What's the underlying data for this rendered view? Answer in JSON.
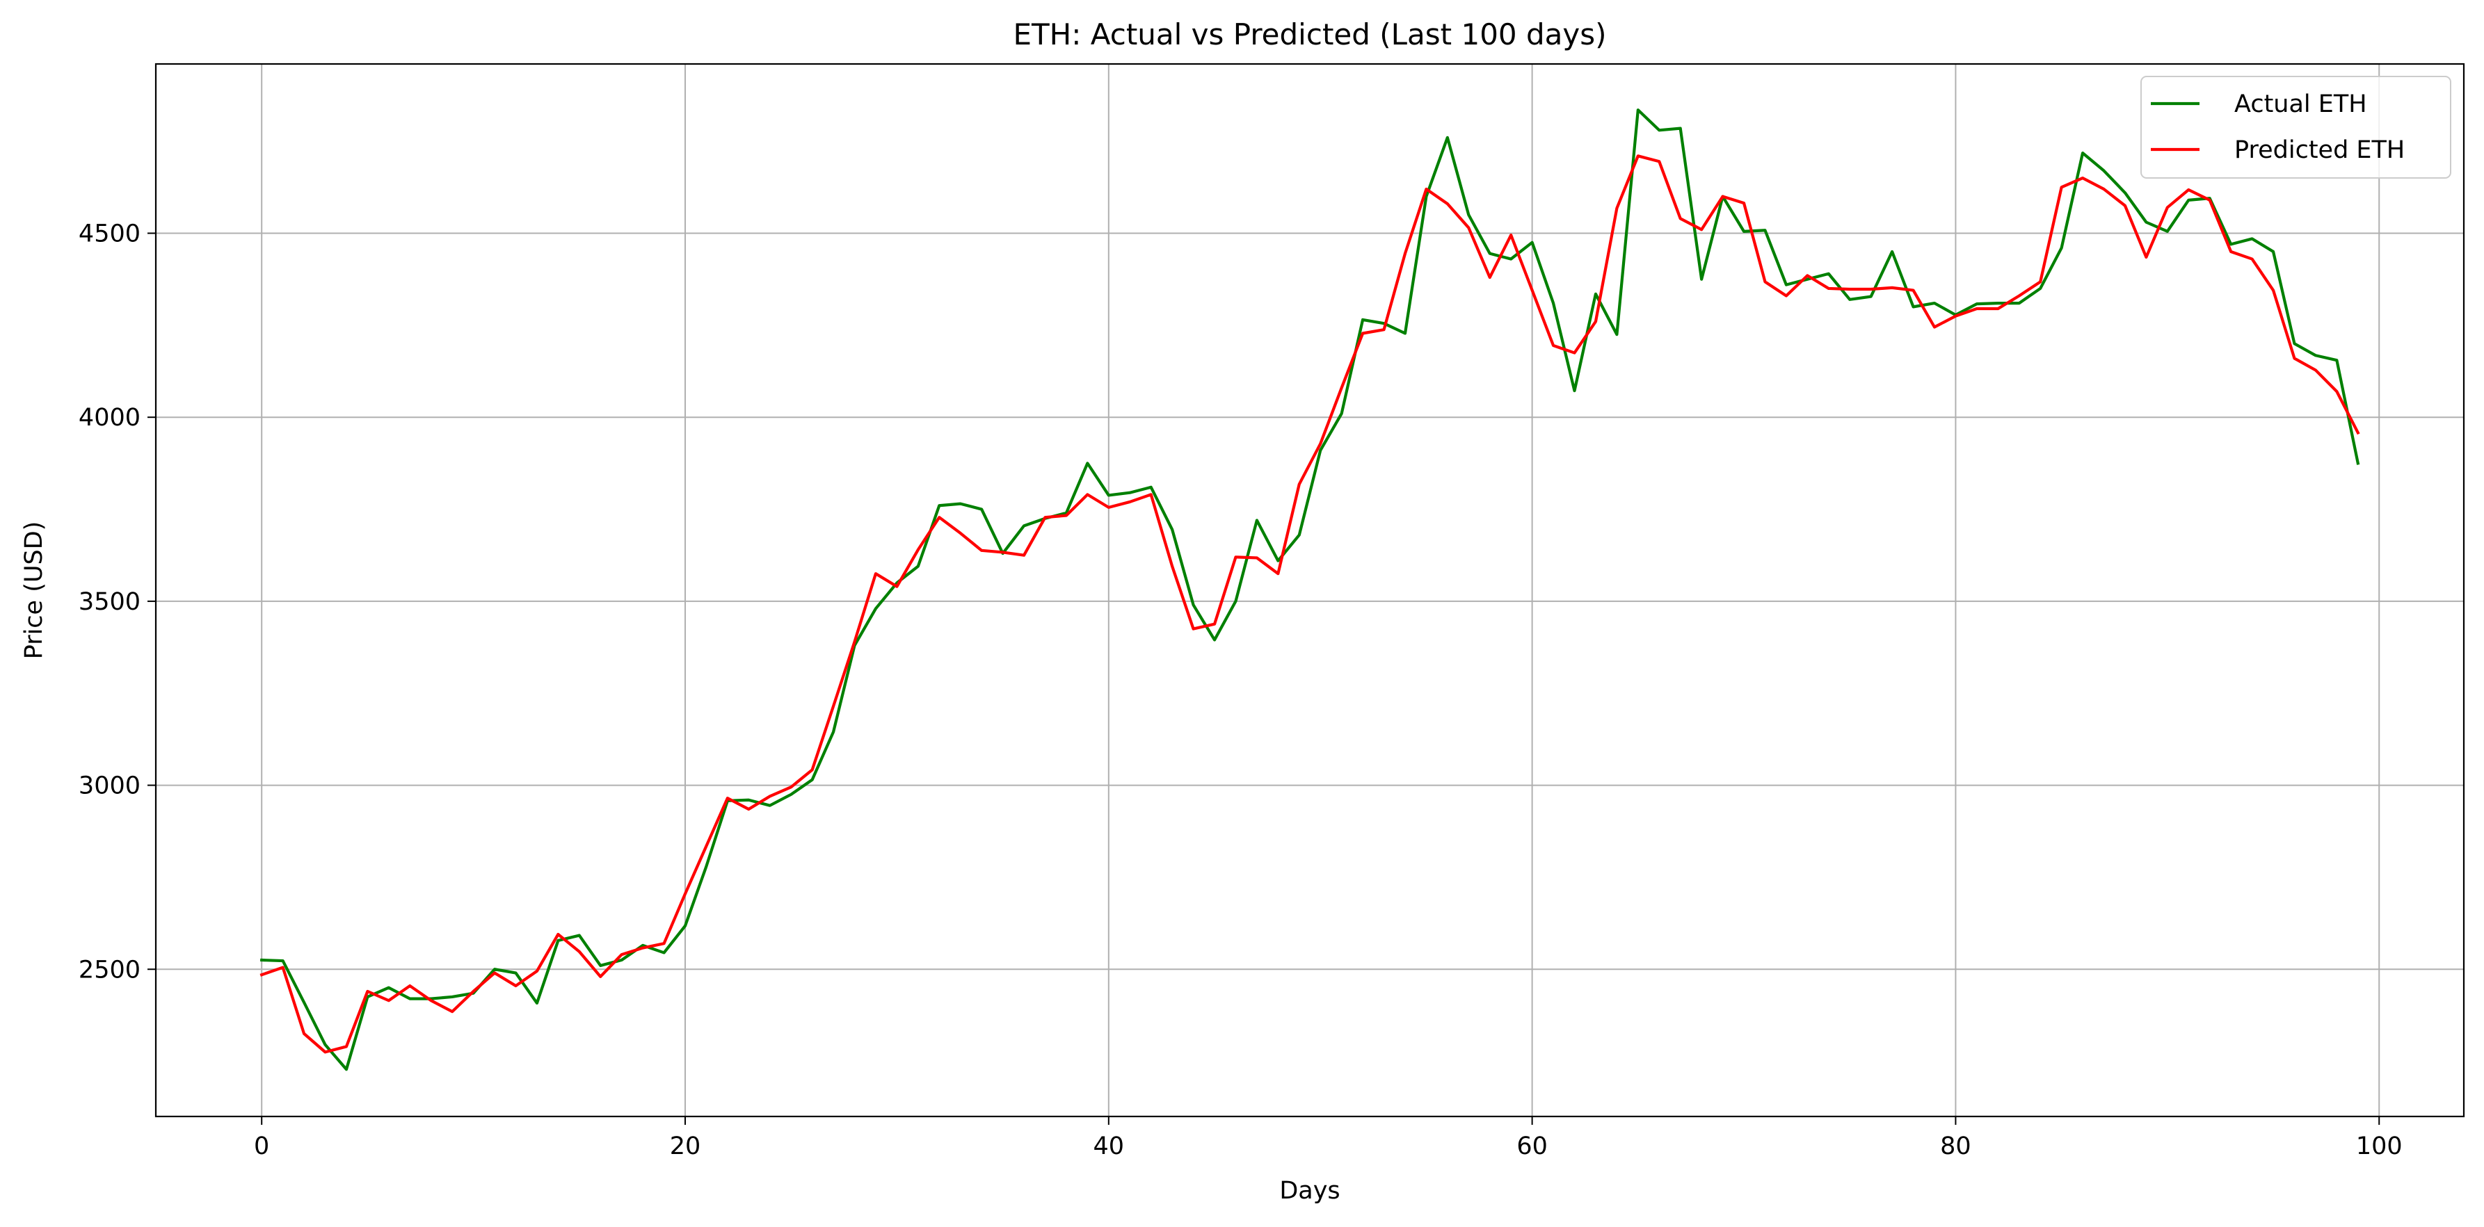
{
  "chart_data": {
    "type": "line",
    "title": "ETH: Actual vs Predicted (Last 100 days)",
    "xlabel": "Days",
    "ylabel": "Price (USD)",
    "xlim": [
      -5,
      104
    ],
    "ylim": [
      2100,
      4960
    ],
    "xticks": [
      0,
      20,
      40,
      60,
      80,
      100
    ],
    "yticks": [
      2500,
      3000,
      3500,
      4000,
      4500
    ],
    "grid": true,
    "legend_position": "top-right",
    "series": [
      {
        "name": "Actual ETH",
        "color": "#008000",
        "values": [
          2525,
          2523,
          2410,
          2295,
          2228,
          2425,
          2450,
          2420,
          2420,
          2425,
          2435,
          2500,
          2490,
          2408,
          2578,
          2592,
          2510,
          2525,
          2565,
          2545,
          2618,
          2780,
          2958,
          2960,
          2945,
          2975,
          3015,
          3145,
          3380,
          3480,
          3550,
          3595,
          3760,
          3765,
          3750,
          3630,
          3705,
          3725,
          3740,
          3875,
          3788,
          3795,
          3810,
          3695,
          3490,
          3395,
          3500,
          3720,
          3610,
          3680,
          3910,
          4010,
          4265,
          4255,
          4228,
          4600,
          4760,
          4550,
          4445,
          4430,
          4475,
          4310,
          4072,
          4335,
          4225,
          4835,
          4780,
          4785,
          4375,
          4600,
          4505,
          4508,
          4360,
          4375,
          4390,
          4320,
          4328,
          4450,
          4300,
          4310,
          4278,
          4308,
          4310,
          4310,
          4350,
          4460,
          4718,
          4670,
          4610,
          4530,
          4505,
          4590,
          4595,
          4470,
          4485,
          4450,
          4200,
          4168,
          4155,
          3875
        ]
      },
      {
        "name": "Predicted ETH",
        "color": "#ff0000",
        "values": [
          2485,
          2505,
          2325,
          2275,
          2290,
          2440,
          2415,
          2455,
          2415,
          2385,
          2440,
          2490,
          2455,
          2495,
          2595,
          2548,
          2480,
          2540,
          2558,
          2570,
          2705,
          2835,
          2965,
          2935,
          2970,
          2995,
          3042,
          3215,
          3390,
          3575,
          3540,
          3640,
          3728,
          3685,
          3638,
          3633,
          3625,
          3728,
          3733,
          3790,
          3755,
          3770,
          3790,
          3595,
          3425,
          3438,
          3620,
          3618,
          3575,
          3818,
          3928,
          4080,
          4228,
          4238,
          4445,
          4620,
          4580,
          4515,
          4380,
          4495,
          4345,
          4195,
          4175,
          4260,
          4568,
          4710,
          4695,
          4540,
          4510,
          4600,
          4582,
          4368,
          4330,
          4385,
          4350,
          4348,
          4348,
          4352,
          4345,
          4245,
          4275,
          4295,
          4295,
          4330,
          4368,
          4625,
          4650,
          4620,
          4575,
          4435,
          4570,
          4618,
          4590,
          4450,
          4430,
          4345,
          4160,
          4128,
          4070,
          3958
        ]
      }
    ]
  }
}
